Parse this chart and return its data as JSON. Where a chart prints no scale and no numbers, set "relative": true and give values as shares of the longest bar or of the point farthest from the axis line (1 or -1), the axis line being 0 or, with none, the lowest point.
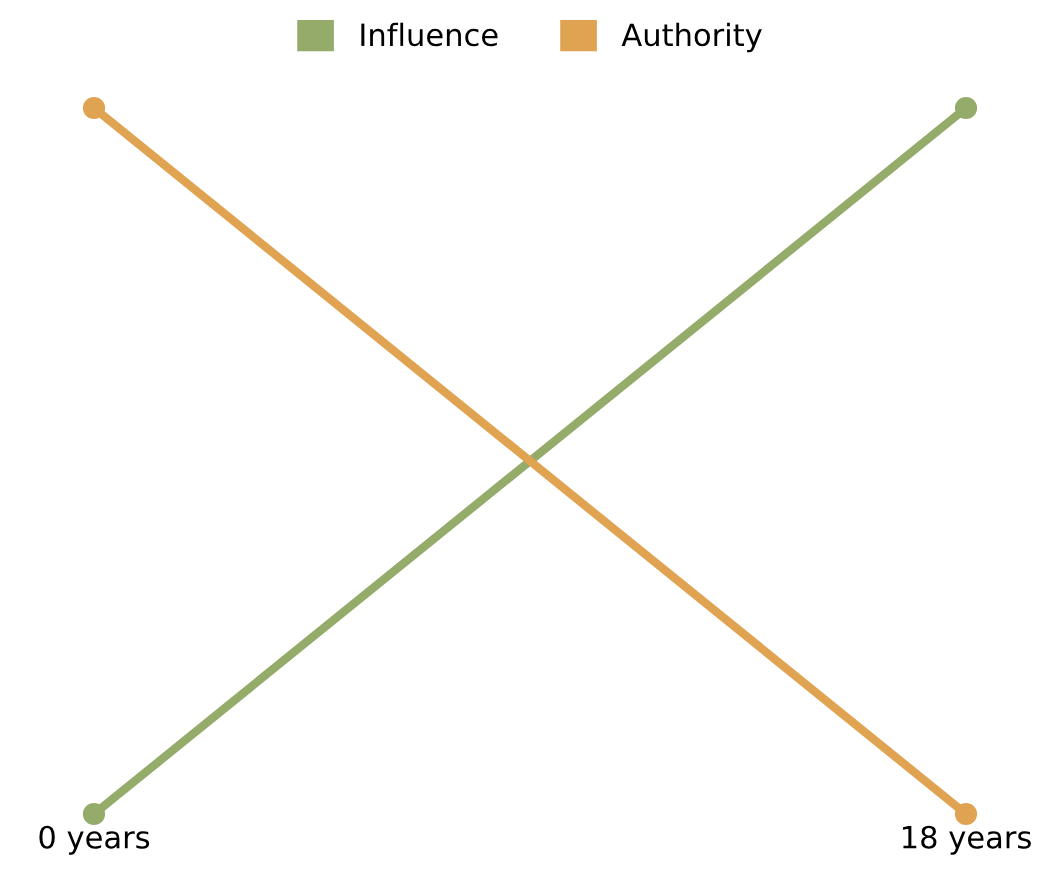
{
  "chart_data": {
    "type": "line",
    "relative": true,
    "categories": [
      "0 years",
      "18 years"
    ],
    "series": [
      {
        "name": "Influence",
        "color": "#94ab6a",
        "values": [
          0,
          1
        ]
      },
      {
        "name": "Authority",
        "color": "#e0a352",
        "values": [
          1,
          0
        ]
      }
    ],
    "legend": "top",
    "marker": "circle",
    "line_style": "solid",
    "grid": false
  }
}
